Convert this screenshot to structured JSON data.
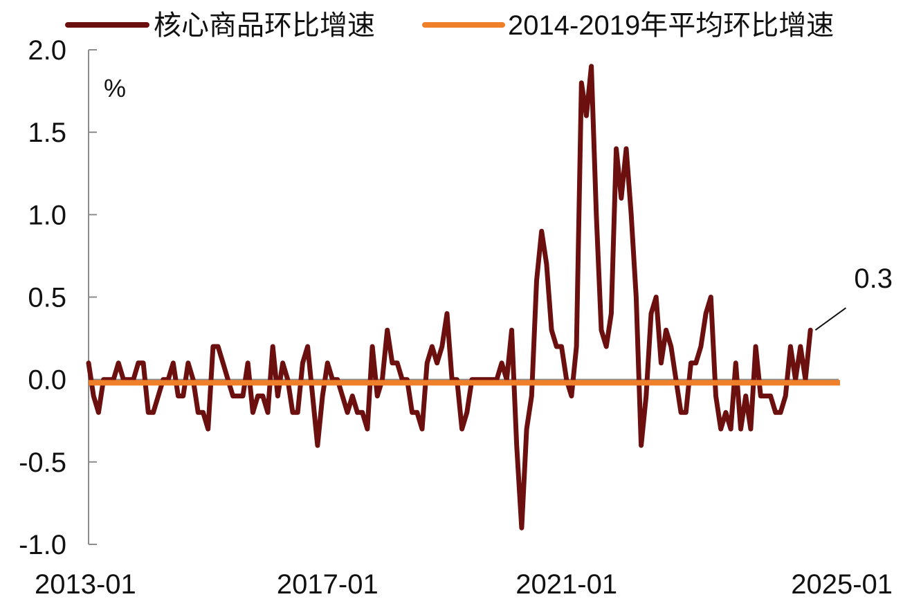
{
  "chart_data": {
    "type": "line",
    "title": "",
    "unit_label": "%",
    "x_tick_labels": [
      "2013-01",
      "2017-01",
      "2021-01",
      "2025-01"
    ],
    "y_tick_labels": [
      "2.0",
      "1.5",
      "1.0",
      "0.5",
      "0.0",
      "-0.5",
      "-1.0"
    ],
    "y_ticks": [
      2.0,
      1.5,
      1.0,
      0.5,
      0.0,
      -0.5,
      -1.0
    ],
    "ylim": [
      -1.0,
      2.0
    ],
    "xlim": [
      "2013-01",
      "2025-01"
    ],
    "legend": {
      "position": "top",
      "items": [
        {
          "label": "核心商品环比增速",
          "color": "#6b0f0f"
        },
        {
          "label": "2014-2019年平均环比增速",
          "color": "#f07f2a"
        }
      ]
    },
    "annotation": {
      "text": "0.3",
      "date": "2025-03",
      "value": 0.3
    },
    "start_date": "2013-01",
    "series": [
      {
        "name": "核心商品环比增速",
        "color": "#6b0f0f",
        "values": [
          0.1,
          -0.1,
          -0.2,
          0.0,
          0.0,
          0.0,
          0.1,
          0.0,
          0.0,
          0.0,
          0.1,
          0.1,
          -0.2,
          -0.2,
          -0.1,
          0.0,
          0.0,
          0.1,
          -0.1,
          -0.1,
          0.1,
          0.0,
          -0.2,
          -0.2,
          -0.3,
          0.2,
          0.2,
          0.1,
          0.0,
          -0.1,
          -0.1,
          -0.1,
          0.1,
          -0.2,
          -0.1,
          -0.1,
          -0.2,
          0.2,
          -0.1,
          0.1,
          0.0,
          -0.2,
          -0.2,
          0.1,
          0.2,
          -0.1,
          -0.4,
          -0.1,
          0.1,
          0.0,
          0.0,
          -0.1,
          -0.2,
          -0.1,
          -0.2,
          -0.2,
          -0.3,
          0.2,
          -0.1,
          0.0,
          0.3,
          0.1,
          0.1,
          0.0,
          0.0,
          -0.2,
          -0.2,
          -0.3,
          0.1,
          0.2,
          0.1,
          0.2,
          0.4,
          0.0,
          0.0,
          -0.3,
          -0.2,
          0.0,
          0.0,
          0.0,
          0.0,
          0.0,
          0.0,
          0.1,
          0.0,
          0.3,
          -0.4,
          -0.9,
          -0.3,
          -0.1,
          0.6,
          0.9,
          0.7,
          0.3,
          0.2,
          0.2,
          0.0,
          -0.1,
          0.2,
          1.8,
          1.6,
          1.9,
          1.0,
          0.3,
          0.2,
          0.4,
          1.4,
          1.1,
          1.4,
          1.0,
          0.5,
          -0.4,
          -0.1,
          0.4,
          0.5,
          0.1,
          0.3,
          0.2,
          0.0,
          -0.2,
          -0.2,
          0.1,
          0.1,
          0.2,
          0.4,
          0.5,
          -0.1,
          -0.3,
          -0.2,
          -0.3,
          0.1,
          -0.3,
          -0.1,
          -0.3,
          0.2,
          -0.1,
          -0.1,
          -0.1,
          -0.2,
          -0.2,
          -0.1,
          0.2,
          0.0,
          0.2,
          0.0,
          0.3
        ]
      },
      {
        "name": "2014-2019年平均环比增速",
        "color": "#f07f2a",
        "constant": -0.02
      }
    ]
  }
}
